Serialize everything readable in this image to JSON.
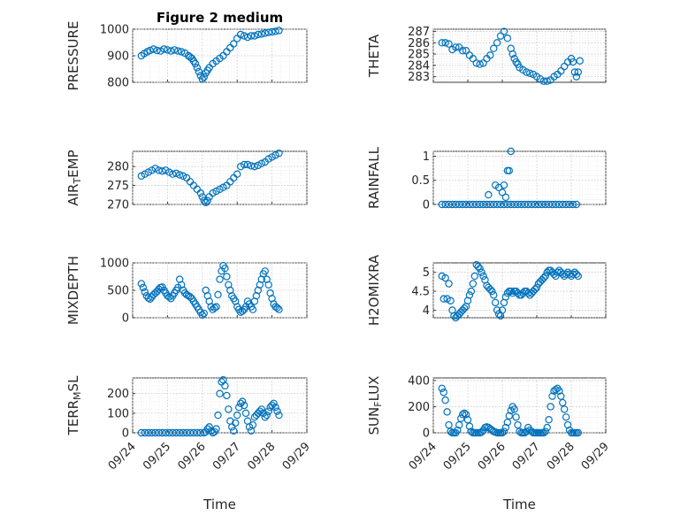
{
  "figure": {
    "title": "Figure 2 medium",
    "xlabel": "Time"
  },
  "chart_data": [
    {
      "type": "scatter",
      "name": "pressure",
      "ylabel": "PRESSURE",
      "ylim": [
        800,
        1000
      ],
      "yticks": [
        800,
        900,
        1000
      ],
      "xlim": [
        0,
        5
      ],
      "xticks": [
        "09/24",
        "09/25",
        "09/26",
        "09/27",
        "09/28",
        "09/29"
      ],
      "show_xticklabels": false,
      "x": [
        0.25,
        0.33,
        0.42,
        0.5,
        0.6,
        0.7,
        0.8,
        0.9,
        1.0,
        1.1,
        1.2,
        1.3,
        1.4,
        1.5,
        1.6,
        1.65,
        1.7,
        1.75,
        1.8,
        1.85,
        1.9,
        1.95,
        2.0,
        2.05,
        2.1,
        2.15,
        2.2,
        2.3,
        2.4,
        2.5,
        2.6,
        2.7,
        2.8,
        2.9,
        3.0,
        3.1,
        3.2,
        3.3,
        3.4,
        3.5,
        3.6,
        3.7,
        3.8,
        3.9,
        4.0,
        4.1,
        4.2
      ],
      "y": [
        900,
        908,
        915,
        920,
        925,
        920,
        918,
        925,
        922,
        918,
        922,
        918,
        915,
        910,
        900,
        895,
        890,
        880,
        870,
        855,
        840,
        825,
        812,
        820,
        835,
        845,
        855,
        870,
        880,
        890,
        900,
        915,
        930,
        945,
        965,
        980,
        975,
        970,
        975,
        975,
        980,
        982,
        985,
        988,
        990,
        992,
        995
      ]
    },
    {
      "type": "scatter",
      "name": "theta",
      "ylabel": "THETA",
      "ylim": [
        282.5,
        287.2
      ],
      "yticks": [
        283,
        284,
        285,
        286,
        287
      ],
      "xlim": [
        0,
        5
      ],
      "xticks": [
        "09/24",
        "09/25",
        "09/26",
        "09/27",
        "09/28",
        "09/29"
      ],
      "show_xticklabels": false,
      "x": [
        0.25,
        0.35,
        0.45,
        0.55,
        0.65,
        0.75,
        0.85,
        0.95,
        1.05,
        1.15,
        1.25,
        1.35,
        1.45,
        1.55,
        1.65,
        1.75,
        1.85,
        1.95,
        2.05,
        2.15,
        2.25,
        2.3,
        2.35,
        2.4,
        2.45,
        2.5,
        2.6,
        2.7,
        2.8,
        2.9,
        3.0,
        3.1,
        3.2,
        3.3,
        3.4,
        3.5,
        3.6,
        3.7,
        3.8,
        3.9,
        4.0,
        4.05,
        4.1,
        4.15,
        4.2,
        4.25
      ],
      "y": [
        286.0,
        286.0,
        285.9,
        285.4,
        285.6,
        285.6,
        285.3,
        285.3,
        284.9,
        284.6,
        284.2,
        284.1,
        284.2,
        284.6,
        284.9,
        285.5,
        286.0,
        286.6,
        287.0,
        286.4,
        285.5,
        285.0,
        284.6,
        284.3,
        284.1,
        283.8,
        283.6,
        283.4,
        283.3,
        283.2,
        283.0,
        282.8,
        282.6,
        282.6,
        282.7,
        283.0,
        283.2,
        283.5,
        283.9,
        284.3,
        284.6,
        284.3,
        283.4,
        283.0,
        283.4,
        284.4
      ]
    },
    {
      "type": "scatter",
      "name": "air_temp",
      "ylabel": "AIR_TEMP",
      "ylim": [
        270,
        284
      ],
      "yticks": [
        270,
        275,
        280
      ],
      "xlim": [
        0,
        5
      ],
      "xticks": [
        "09/24",
        "09/25",
        "09/26",
        "09/27",
        "09/28",
        "09/29"
      ],
      "show_xticklabels": false,
      "x": [
        0.25,
        0.35,
        0.45,
        0.55,
        0.65,
        0.75,
        0.85,
        0.95,
        1.05,
        1.15,
        1.25,
        1.35,
        1.45,
        1.55,
        1.65,
        1.75,
        1.85,
        1.95,
        2.0,
        2.05,
        2.1,
        2.15,
        2.2,
        2.3,
        2.4,
        2.5,
        2.6,
        2.7,
        2.8,
        2.9,
        3.0,
        3.1,
        3.2,
        3.3,
        3.4,
        3.5,
        3.6,
        3.7,
        3.8,
        3.9,
        4.0,
        4.1,
        4.2
      ],
      "y": [
        277.5,
        278,
        278.5,
        279,
        279.5,
        279,
        278.8,
        279,
        278.5,
        278,
        278.2,
        277.8,
        277.5,
        277,
        276,
        275,
        274,
        273,
        272,
        271,
        270.5,
        271,
        272,
        273,
        273.5,
        274,
        274.5,
        275,
        276,
        277,
        278,
        280,
        280.5,
        280.5,
        280.2,
        280,
        280.3,
        280.8,
        281.2,
        282,
        282.5,
        283,
        283.5
      ]
    },
    {
      "type": "scatter",
      "name": "rainfall",
      "ylabel": "RAINFALL",
      "ylim": [
        0,
        1.1
      ],
      "yticks": [
        0,
        0.5,
        1
      ],
      "xlim": [
        0,
        5
      ],
      "xticks": [
        "09/24",
        "09/25",
        "09/26",
        "09/27",
        "09/28",
        "09/29"
      ],
      "show_xticklabels": false,
      "x": [
        0.25,
        0.35,
        0.45,
        0.55,
        0.65,
        0.75,
        0.85,
        0.95,
        1.05,
        1.15,
        1.25,
        1.35,
        1.45,
        1.55,
        1.65,
        1.75,
        1.85,
        1.95,
        2.05,
        2.15,
        2.25,
        2.35,
        2.45,
        2.55,
        2.65,
        2.75,
        2.85,
        2.95,
        3.05,
        3.15,
        3.25,
        3.35,
        3.45,
        3.55,
        3.65,
        3.75,
        3.85,
        3.95,
        4.05,
        4.15,
        1.6,
        1.8,
        1.9,
        2.0,
        2.05,
        2.1,
        2.15,
        2.2,
        2.25
      ],
      "y": [
        0,
        0,
        0,
        0,
        0,
        0,
        0,
        0,
        0,
        0,
        0,
        0,
        0,
        0,
        0,
        0,
        0,
        0,
        0,
        0,
        0,
        0,
        0,
        0,
        0,
        0,
        0,
        0,
        0,
        0,
        0,
        0,
        0,
        0,
        0,
        0,
        0,
        0,
        0,
        0,
        0.2,
        0.4,
        0.35,
        0.25,
        0.4,
        0.15,
        0.7,
        0.7,
        1.1
      ]
    },
    {
      "type": "scatter",
      "name": "mixdepth",
      "ylabel": "MIXDEPTH",
      "ylim": [
        0,
        1000
      ],
      "yticks": [
        0,
        500,
        1000
      ],
      "xlim": [
        0,
        5
      ],
      "xticks": [
        "09/24",
        "09/25",
        "09/26",
        "09/27",
        "09/28",
        "09/29"
      ],
      "show_xticklabels": false,
      "x": [
        0.25,
        0.3,
        0.35,
        0.4,
        0.45,
        0.5,
        0.55,
        0.6,
        0.65,
        0.7,
        0.75,
        0.8,
        0.85,
        0.9,
        0.95,
        1.0,
        1.05,
        1.1,
        1.15,
        1.2,
        1.25,
        1.3,
        1.35,
        1.4,
        1.45,
        1.5,
        1.55,
        1.6,
        1.65,
        1.7,
        1.75,
        1.8,
        1.85,
        1.9,
        1.95,
        2.0,
        2.05,
        2.1,
        2.15,
        2.2,
        2.25,
        2.3,
        2.35,
        2.4,
        2.45,
        2.5,
        2.55,
        2.6,
        2.65,
        2.7,
        2.75,
        2.8,
        2.85,
        2.9,
        2.95,
        3.0,
        3.05,
        3.1,
        3.15,
        3.2,
        3.25,
        3.3,
        3.35,
        3.4,
        3.45,
        3.5,
        3.55,
        3.6,
        3.65,
        3.7,
        3.75,
        3.8,
        3.85,
        3.9,
        3.95,
        4.0,
        4.05,
        4.1,
        4.15,
        4.2
      ],
      "y": [
        620,
        550,
        470,
        400,
        360,
        340,
        380,
        420,
        450,
        480,
        520,
        550,
        560,
        500,
        450,
        400,
        380,
        350,
        400,
        450,
        500,
        550,
        700,
        600,
        500,
        450,
        420,
        400,
        380,
        350,
        300,
        250,
        200,
        150,
        100,
        50,
        80,
        500,
        400,
        300,
        200,
        150,
        180,
        200,
        420,
        700,
        850,
        950,
        900,
        750,
        600,
        500,
        400,
        350,
        300,
        200,
        150,
        100,
        120,
        150,
        200,
        300,
        250,
        200,
        150,
        300,
        400,
        500,
        600,
        700,
        800,
        850,
        700,
        600,
        450,
        350,
        250,
        200,
        180,
        150
      ]
    },
    {
      "type": "scatter",
      "name": "h2omixra",
      "ylabel": "H2OMIXRA",
      "ylim": [
        3.8,
        5.25
      ],
      "yticks": [
        4,
        4.5,
        5
      ],
      "xlim": [
        0,
        5
      ],
      "xticks": [
        "09/24",
        "09/25",
        "09/26",
        "09/27",
        "09/28",
        "09/29"
      ],
      "show_xticklabels": false,
      "x": [
        0.25,
        0.3,
        0.35,
        0.4,
        0.45,
        0.5,
        0.55,
        0.6,
        0.65,
        0.7,
        0.75,
        0.8,
        0.85,
        0.9,
        0.95,
        1.0,
        1.05,
        1.1,
        1.15,
        1.2,
        1.25,
        1.3,
        1.35,
        1.4,
        1.45,
        1.5,
        1.55,
        1.6,
        1.65,
        1.7,
        1.75,
        1.8,
        1.85,
        1.9,
        1.95,
        2.0,
        2.05,
        2.1,
        2.15,
        2.2,
        2.25,
        2.3,
        2.35,
        2.4,
        2.45,
        2.5,
        2.55,
        2.6,
        2.65,
        2.7,
        2.75,
        2.8,
        2.85,
        2.9,
        2.95,
        3.0,
        3.05,
        3.1,
        3.15,
        3.2,
        3.25,
        3.3,
        3.35,
        3.4,
        3.45,
        3.5,
        3.55,
        3.6,
        3.65,
        3.7,
        3.75,
        3.8,
        3.85,
        3.9,
        3.95,
        4.0,
        4.05,
        4.1,
        4.15,
        4.2
      ],
      "y": [
        4.9,
        4.3,
        4.85,
        4.3,
        4.7,
        4.25,
        4.0,
        3.85,
        3.8,
        3.85,
        3.9,
        3.95,
        4.0,
        4.05,
        4.1,
        4.25,
        4.4,
        4.5,
        4.7,
        4.9,
        5.2,
        5.15,
        5.1,
        5.0,
        4.9,
        4.8,
        4.65,
        4.6,
        4.55,
        4.5,
        4.4,
        4.2,
        4.0,
        3.9,
        3.85,
        4.0,
        4.2,
        4.35,
        4.45,
        4.5,
        4.5,
        4.45,
        4.5,
        4.5,
        4.45,
        4.4,
        4.4,
        4.45,
        4.5,
        4.5,
        4.45,
        4.4,
        4.45,
        4.5,
        4.55,
        4.6,
        4.7,
        4.75,
        4.8,
        4.85,
        4.9,
        5.0,
        5.05,
        5.05,
        5.0,
        4.95,
        4.9,
        5.0,
        5.05,
        5.0,
        4.95,
        4.9,
        4.95,
        5.0,
        4.95,
        4.9,
        4.95,
        5.0,
        4.95,
        4.9
      ]
    },
    {
      "type": "scatter",
      "name": "terr_msl",
      "ylabel": "TERR_MSL",
      "ylim": [
        0,
        280
      ],
      "yticks": [
        0,
        100,
        200
      ],
      "xlim": [
        0,
        5
      ],
      "xticks": [
        "09/24",
        "09/25",
        "09/26",
        "09/27",
        "09/28",
        "09/29"
      ],
      "show_xticklabels": true,
      "x": [
        0.25,
        0.35,
        0.45,
        0.55,
        0.65,
        0.75,
        0.85,
        0.95,
        1.05,
        1.15,
        1.25,
        1.35,
        1.45,
        1.55,
        1.65,
        1.75,
        1.85,
        1.95,
        2.05,
        2.1,
        2.15,
        2.2,
        2.25,
        2.3,
        2.35,
        2.4,
        2.45,
        2.5,
        2.55,
        2.6,
        2.65,
        2.7,
        2.75,
        2.8,
        2.85,
        2.9,
        2.95,
        3.0,
        3.05,
        3.1,
        3.15,
        3.2,
        3.25,
        3.3,
        3.35,
        3.4,
        3.45,
        3.5,
        3.55,
        3.6,
        3.65,
        3.7,
        3.75,
        3.8,
        3.85,
        3.9,
        3.95,
        4.0,
        4.05,
        4.1,
        4.15,
        4.2
      ],
      "y": [
        0,
        0,
        0,
        0,
        0,
        0,
        0,
        0,
        0,
        0,
        0,
        0,
        0,
        0,
        0,
        0,
        0,
        0,
        0,
        5,
        20,
        30,
        10,
        0,
        5,
        20,
        90,
        200,
        260,
        270,
        240,
        190,
        120,
        60,
        30,
        10,
        50,
        90,
        130,
        150,
        160,
        140,
        100,
        60,
        30,
        10,
        40,
        80,
        90,
        100,
        110,
        120,
        100,
        80,
        90,
        110,
        130,
        140,
        150,
        130,
        110,
        90
      ]
    },
    {
      "type": "scatter",
      "name": "sun_flux",
      "ylabel": "SUN_FLUX",
      "ylim": [
        0,
        420
      ],
      "yticks": [
        0,
        200,
        400
      ],
      "xlim": [
        0,
        5
      ],
      "xticks": [
        "09/24",
        "09/25",
        "09/26",
        "09/27",
        "09/28",
        "09/29"
      ],
      "show_xticklabels": true,
      "x": [
        0.25,
        0.3,
        0.35,
        0.4,
        0.45,
        0.5,
        0.55,
        0.6,
        0.65,
        0.7,
        0.75,
        0.8,
        0.85,
        0.9,
        0.95,
        1.0,
        1.05,
        1.1,
        1.15,
        1.2,
        1.25,
        1.3,
        1.35,
        1.4,
        1.45,
        1.5,
        1.55,
        1.6,
        1.65,
        1.7,
        1.75,
        1.8,
        1.85,
        1.9,
        1.95,
        2.0,
        2.05,
        2.1,
        2.15,
        2.2,
        2.25,
        2.3,
        2.35,
        2.4,
        2.45,
        2.5,
        2.55,
        2.6,
        2.65,
        2.7,
        2.75,
        2.8,
        2.85,
        2.9,
        2.95,
        3.0,
        3.05,
        3.1,
        3.15,
        3.2,
        3.25,
        3.3,
        3.35,
        3.4,
        3.45,
        3.5,
        3.55,
        3.6,
        3.65,
        3.7,
        3.75,
        3.8,
        3.85,
        3.9,
        3.95,
        4.0,
        4.05,
        4.1,
        4.15,
        4.2
      ],
      "y": [
        340,
        310,
        250,
        160,
        60,
        10,
        0,
        0,
        0,
        20,
        60,
        110,
        140,
        150,
        140,
        100,
        50,
        10,
        0,
        0,
        0,
        0,
        0,
        5,
        20,
        40,
        45,
        40,
        30,
        20,
        10,
        5,
        0,
        0,
        0,
        0,
        10,
        40,
        80,
        130,
        170,
        200,
        180,
        120,
        60,
        10,
        0,
        0,
        0,
        10,
        40,
        20,
        10,
        0,
        0,
        0,
        0,
        0,
        0,
        0,
        10,
        40,
        100,
        200,
        280,
        320,
        330,
        340,
        320,
        280,
        230,
        180,
        120,
        60,
        20,
        0,
        0,
        0,
        0,
        0
      ]
    }
  ]
}
